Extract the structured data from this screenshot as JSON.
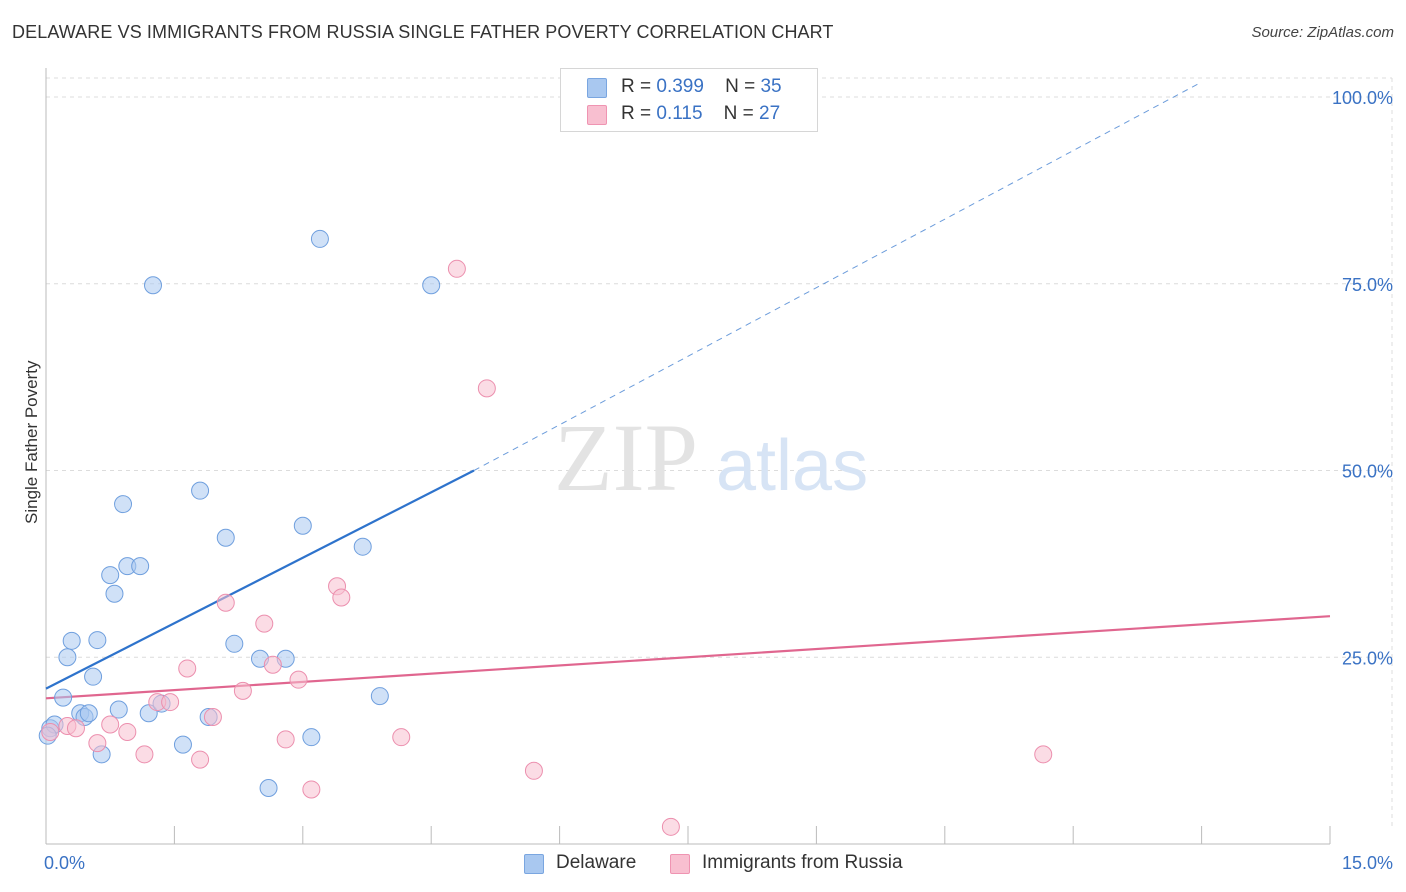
{
  "title": "DELAWARE VS IMMIGRANTS FROM RUSSIA SINGLE FATHER POVERTY CORRELATION CHART",
  "source": "Source: ZipAtlas.com",
  "watermark": {
    "zip": "ZIP",
    "atlas": "atlas"
  },
  "legend": [
    {
      "r_label": "R =",
      "r_value": "0.399",
      "n_label": "N =",
      "n_value": "35",
      "color": "#a9c8f0",
      "border": "#7aa6e0"
    },
    {
      "r_label": "R =",
      "r_value": "0.115",
      "n_label": "N =",
      "n_value": "27",
      "color": "#f8bfd0",
      "border": "#ef94b2"
    }
  ],
  "bottom_legend": [
    "Delaware",
    "Immigrants from Russia"
  ],
  "chart_data": {
    "type": "scatter",
    "title": "DELAWARE VS IMMIGRANTS FROM RUSSIA SINGLE FATHER POVERTY CORRELATION CHART",
    "xlabel": "",
    "ylabel": "Single Father Poverty",
    "xlim": [
      0,
      15
    ],
    "ylim": [
      0,
      102
    ],
    "x_tick_labels": [
      "0.0%",
      "15.0%"
    ],
    "y_ticks": [
      25,
      50,
      75,
      100
    ],
    "y_tick_labels": [
      "25.0%",
      "50.0%",
      "75.0%",
      "100.0%"
    ],
    "series": [
      {
        "name": "Delaware",
        "color": "#a9c8f0",
        "edge": "#6f9fde",
        "line_color": "#2e73cc",
        "trend": {
          "x0": 0.0,
          "y0": 20.8,
          "x1": 5.0,
          "y1": 50.0,
          "dash_to_x": 13.5,
          "dash_to_y": 102
        },
        "points": [
          [
            0.05,
            15.5
          ],
          [
            0.1,
            16.0
          ],
          [
            0.2,
            19.6
          ],
          [
            0.25,
            25.0
          ],
          [
            0.3,
            27.2
          ],
          [
            0.4,
            17.5
          ],
          [
            0.45,
            17.0
          ],
          [
            0.5,
            17.5
          ],
          [
            0.55,
            22.4
          ],
          [
            0.6,
            27.3
          ],
          [
            0.65,
            12.0
          ],
          [
            0.75,
            36.0
          ],
          [
            0.8,
            33.5
          ],
          [
            0.85,
            18.0
          ],
          [
            0.9,
            45.5
          ],
          [
            0.95,
            37.2
          ],
          [
            1.1,
            37.2
          ],
          [
            1.2,
            17.5
          ],
          [
            1.25,
            74.8
          ],
          [
            1.35,
            18.8
          ],
          [
            1.6,
            13.3
          ],
          [
            1.8,
            47.3
          ],
          [
            1.9,
            17.0
          ],
          [
            2.1,
            41.0
          ],
          [
            2.2,
            26.8
          ],
          [
            2.5,
            24.8
          ],
          [
            2.6,
            7.5
          ],
          [
            2.8,
            24.8
          ],
          [
            3.0,
            42.6
          ],
          [
            3.1,
            14.3
          ],
          [
            3.2,
            81.0
          ],
          [
            3.7,
            39.8
          ],
          [
            3.9,
            19.8
          ],
          [
            4.5,
            74.8
          ],
          [
            0.02,
            14.5
          ]
        ]
      },
      {
        "name": "Immigrants from Russia",
        "color": "#f8bfd0",
        "edge": "#ec8fae",
        "line_color": "#e0668f",
        "trend": {
          "x0": 0.0,
          "y0": 19.5,
          "x1": 15.0,
          "y1": 30.5
        },
        "points": [
          [
            0.05,
            15.0
          ],
          [
            0.25,
            15.8
          ],
          [
            0.35,
            15.5
          ],
          [
            0.6,
            13.5
          ],
          [
            0.75,
            16.0
          ],
          [
            0.95,
            15.0
          ],
          [
            1.15,
            12.0
          ],
          [
            1.3,
            19.0
          ],
          [
            1.45,
            19.0
          ],
          [
            1.65,
            23.5
          ],
          [
            1.8,
            11.3
          ],
          [
            1.95,
            17.0
          ],
          [
            2.1,
            32.3
          ],
          [
            2.3,
            20.5
          ],
          [
            2.55,
            29.5
          ],
          [
            2.65,
            24.0
          ],
          [
            2.8,
            14.0
          ],
          [
            2.95,
            22.0
          ],
          [
            3.1,
            7.3
          ],
          [
            3.4,
            34.5
          ],
          [
            3.45,
            33.0
          ],
          [
            4.15,
            14.3
          ],
          [
            4.8,
            77.0
          ],
          [
            5.15,
            61.0
          ],
          [
            5.7,
            9.8
          ],
          [
            7.3,
            2.3
          ],
          [
            11.65,
            12.0
          ]
        ]
      }
    ]
  }
}
